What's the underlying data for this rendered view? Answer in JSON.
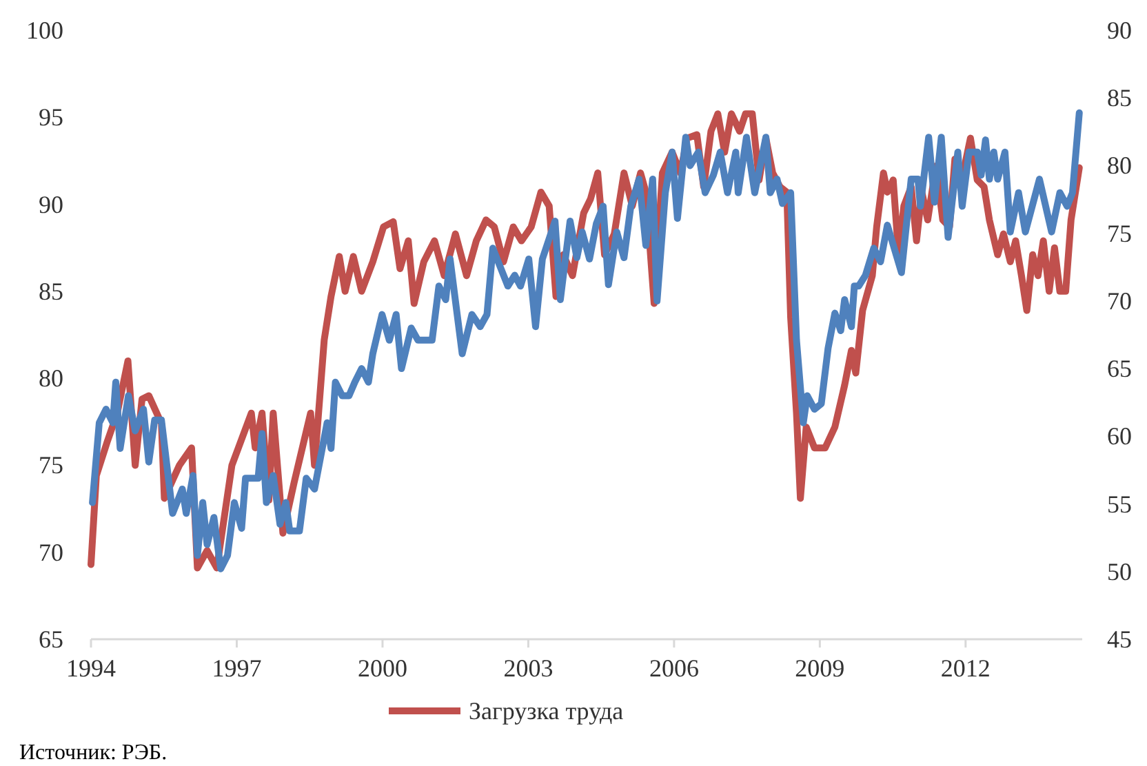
{
  "chart_data": {
    "type": "line",
    "xlim": [
      1994,
      2014.4
    ],
    "xticks": [
      1994,
      1997,
      2000,
      2003,
      2006,
      2009,
      2012
    ],
    "ylim": [
      65,
      100
    ],
    "yticks": [
      65,
      70,
      75,
      80,
      85,
      90,
      95,
      100
    ],
    "y2lim": [
      45,
      90
    ],
    "y2ticks": [
      45,
      50,
      55,
      60,
      65,
      70,
      75,
      80,
      85,
      90
    ],
    "grid": false,
    "legend": "bottom",
    "marker": "none",
    "line_style": "solid",
    "annotations": [
      "Источник: РЭБ."
    ],
    "series": [
      {
        "name": "Загрузка труда",
        "color": "#c0504d",
        "x": [
          1994.0,
          1994.11,
          1994.34,
          1994.54,
          1994.76,
          1994.91,
          1995.05,
          1995.19,
          1995.45,
          1995.51,
          1995.82,
          1996.07,
          1996.19,
          1996.39,
          1996.59,
          1996.9,
          1997.3,
          1997.38,
          1997.52,
          1997.66,
          1997.75,
          1997.95,
          1998.18,
          1998.52,
          1998.6,
          1998.8,
          1998.94,
          1999.11,
          1999.23,
          1999.4,
          1999.57,
          1999.8,
          2000.02,
          2000.22,
          2000.36,
          2000.53,
          2000.65,
          2000.85,
          2001.07,
          2001.27,
          2001.5,
          2001.73,
          2001.93,
          2002.13,
          2002.3,
          2002.49,
          2002.69,
          2002.86,
          2003.06,
          2003.26,
          2003.43,
          2003.57,
          2003.72,
          2003.91,
          2004.14,
          2004.28,
          2004.43,
          2004.57,
          2004.77,
          2004.97,
          2005.14,
          2005.31,
          2005.42,
          2005.59,
          2005.76,
          2005.96,
          2006.13,
          2006.27,
          2006.47,
          2006.61,
          2006.76,
          2006.9,
          2007.04,
          2007.18,
          2007.35,
          2007.47,
          2007.61,
          2007.75,
          2007.89,
          2008.03,
          2008.18,
          2008.32,
          2008.4,
          2008.52,
          2008.6,
          2008.72,
          2008.89,
          2009.11,
          2009.31,
          2009.51,
          2009.65,
          2009.74,
          2009.88,
          2010.08,
          2010.17,
          2010.31,
          2010.39,
          2010.51,
          2010.62,
          2010.73,
          2010.88,
          2010.99,
          2011.1,
          2011.22,
          2011.39,
          2011.53,
          2011.67,
          2011.78,
          2011.95,
          2012.1,
          2012.24,
          2012.38,
          2012.49,
          2012.66,
          2012.78,
          2012.92,
          2013.03,
          2013.15,
          2013.26,
          2013.38,
          2013.49,
          2013.6,
          2013.72,
          2013.83,
          2013.94,
          2014.06,
          2014.17,
          2014.34
        ],
        "values": [
          69.3,
          74.4,
          76.4,
          78,
          81,
          75,
          78.8,
          79,
          77.4,
          73.1,
          75,
          76,
          69.1,
          70.1,
          69.1,
          75,
          78,
          76,
          78,
          73,
          78,
          71.1,
          74,
          78,
          75,
          82.2,
          84.7,
          87,
          85,
          87,
          85,
          86.7,
          88.7,
          89,
          86.3,
          87.9,
          84.3,
          86.7,
          87.9,
          85.9,
          88.3,
          85.9,
          87.9,
          89.1,
          88.7,
          86.7,
          88.7,
          87.9,
          88.7,
          90.7,
          89.9,
          84.7,
          87.1,
          85.9,
          89.5,
          90.3,
          91.8,
          87.1,
          88.3,
          91.8,
          89.9,
          91.8,
          90.7,
          84.3,
          91.8,
          93,
          91.8,
          93.8,
          94,
          91,
          94.2,
          95.2,
          93,
          95.2,
          94.2,
          95.2,
          95.2,
          91.4,
          93.8,
          91.8,
          91,
          90.7,
          83.5,
          78,
          73.1,
          77.2,
          76,
          76,
          77.2,
          79.6,
          81.6,
          80.3,
          83.9,
          85.9,
          88.7,
          91.8,
          90.7,
          91.4,
          87.1,
          89.9,
          91,
          87.9,
          90.7,
          89.1,
          92.2,
          89.1,
          88.7,
          92.6,
          91.8,
          93.8,
          91.4,
          91,
          89.1,
          87.1,
          88.3,
          86.7,
          87.9,
          85.9,
          83.9,
          87.1,
          85.9,
          87.9,
          85,
          87.5,
          85,
          85,
          89.1,
          92.1
        ]
      },
      {
        "color": "#4f81bd",
        "axis": "y2",
        "x": [
          1994.03,
          1994.17,
          1994.31,
          1994.45,
          1994.51,
          1994.6,
          1994.77,
          1994.91,
          1995.08,
          1995.19,
          1995.31,
          1995.45,
          1995.68,
          1995.88,
          1995.96,
          1996.1,
          1996.19,
          1996.3,
          1996.39,
          1996.53,
          1996.67,
          1996.81,
          1996.95,
          1997.1,
          1997.18,
          1997.44,
          1997.52,
          1997.61,
          1997.75,
          1997.89,
          1998.01,
          1998.09,
          1998.29,
          1998.43,
          1998.6,
          1998.86,
          1998.94,
          1999.03,
          1999.17,
          1999.31,
          1999.43,
          1999.57,
          1999.71,
          1999.8,
          1999.99,
          2000.14,
          2000.28,
          2000.39,
          2000.59,
          2000.73,
          2001.02,
          2001.16,
          2001.3,
          2001.39,
          2001.64,
          2001.84,
          2002.01,
          2002.15,
          2002.27,
          2002.58,
          2002.72,
          2002.84,
          2003.01,
          2003.15,
          2003.29,
          2003.55,
          2003.66,
          2003.86,
          2004.0,
          2004.11,
          2004.26,
          2004.4,
          2004.54,
          2004.65,
          2004.82,
          2004.97,
          2005.11,
          2005.28,
          2005.42,
          2005.56,
          2005.65,
          2005.82,
          2005.96,
          2006.07,
          2006.24,
          2006.33,
          2006.5,
          2006.64,
          2006.81,
          2006.95,
          2007.1,
          2007.27,
          2007.32,
          2007.49,
          2007.66,
          2007.89,
          2007.98,
          2008.12,
          2008.23,
          2008.4,
          2008.52,
          2008.66,
          2008.74,
          2008.89,
          2009.03,
          2009.17,
          2009.31,
          2009.43,
          2009.51,
          2009.65,
          2009.71,
          2009.8,
          2009.94,
          2010.11,
          2010.25,
          2010.39,
          2010.68,
          2010.88,
          2011.02,
          2011.07,
          2011.24,
          2011.36,
          2011.5,
          2011.64,
          2011.84,
          2011.93,
          2012.07,
          2012.24,
          2012.32,
          2012.41,
          2012.49,
          2012.58,
          2012.66,
          2012.81,
          2012.92,
          2013.09,
          2013.23,
          2013.52,
          2013.77,
          2013.94,
          2014.09,
          2014.2,
          2014.34
        ],
        "values": [
          55.1,
          61,
          62,
          61,
          64,
          59.1,
          63,
          60.4,
          62,
          58.1,
          61.2,
          61.2,
          54.3,
          56.1,
          54.3,
          57.1,
          51.2,
          55.1,
          52,
          54,
          50.2,
          51.2,
          55.1,
          53.2,
          56.9,
          56.9,
          60.2,
          55.1,
          57.1,
          53.5,
          55.1,
          53,
          53,
          56.9,
          56.1,
          61,
          59.1,
          64,
          63,
          63,
          64,
          65,
          64,
          66.1,
          69,
          67.1,
          69,
          65,
          68,
          67.1,
          67.1,
          71.1,
          70.1,
          73.1,
          66.1,
          69,
          68.1,
          69,
          73.9,
          71.1,
          71.9,
          71.1,
          73.1,
          68.1,
          73.1,
          75.9,
          70.1,
          75.9,
          73.2,
          75.1,
          73.1,
          75.7,
          77,
          71.2,
          75.1,
          73.2,
          77,
          79,
          74.1,
          79,
          70,
          78,
          81,
          76.1,
          82.1,
          80,
          81,
          78,
          79.3,
          81,
          78,
          81,
          78,
          82.1,
          78,
          82.1,
          78,
          79,
          77.2,
          78,
          67.1,
          61,
          63,
          62,
          62.4,
          66.5,
          69.1,
          67.8,
          70.1,
          68.1,
          71.1,
          71.1,
          71.9,
          73.9,
          72.9,
          75.6,
          72.1,
          79,
          79,
          77,
          82.1,
          77.3,
          82.1,
          74.7,
          81,
          77,
          81,
          81,
          79.3,
          81.9,
          79,
          81,
          79,
          81,
          75.1,
          78,
          75.1,
          79,
          75.1,
          78,
          77,
          78,
          83.9
        ]
      }
    ]
  }
}
